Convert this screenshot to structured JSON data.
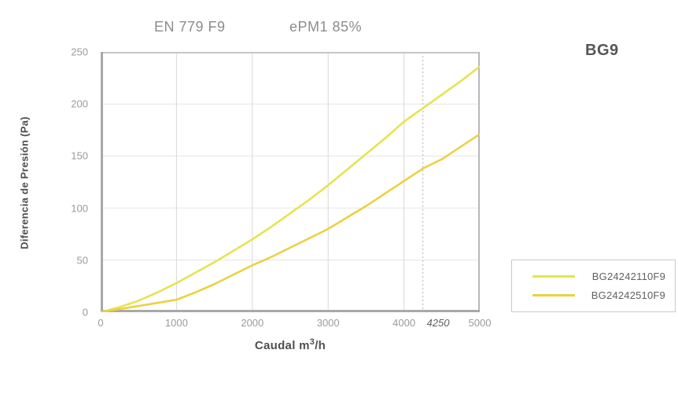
{
  "header": {
    "en779_label": "EN 779 F9",
    "epm1_label": "ePM1 85%",
    "model_label": "BG9"
  },
  "chart_data": {
    "type": "line",
    "title": "",
    "xlabel_prefix": "Caudal m",
    "xlabel_sup": "3",
    "xlabel_suffix": "/h",
    "ylabel": "Diferencia de Presión  (Pa)",
    "xlim": [
      0,
      5000
    ],
    "ylim": [
      0,
      250
    ],
    "x_ticks": [
      0,
      1000,
      2000,
      3000,
      4000,
      5000
    ],
    "y_ticks": [
      0,
      50,
      100,
      150,
      200,
      250
    ],
    "x_annotation_label": "4250",
    "reference_line_x": 4250,
    "grid": true,
    "legend_position": "outside-right",
    "x_samples": [
      0,
      250,
      500,
      750,
      1000,
      1250,
      1500,
      1750,
      2000,
      2250,
      2500,
      2750,
      3000,
      3250,
      3500,
      3750,
      4000,
      4250,
      4500,
      4750,
      5000
    ],
    "series": [
      {
        "name": "BG24242110F9",
        "color": "#e6e34c",
        "values": [
          0,
          5,
          11,
          19,
          28,
          38,
          48,
          59,
          70,
          82,
          95,
          108,
          122,
          137,
          152,
          167,
          183,
          196,
          209,
          222,
          236
        ]
      },
      {
        "name": "BG24242510F9",
        "color": "#ecd03e",
        "values": [
          0,
          3,
          6,
          9,
          12,
          19,
          27,
          36,
          45,
          53,
          62,
          71,
          80,
          91,
          102,
          114,
          126,
          138,
          147,
          159,
          171
        ]
      }
    ],
    "colors": {
      "grid_horizontal": "#e4e4e4",
      "grid_vertical": "#d8d8d8",
      "reference_line": "#b2b2b2",
      "axis_spine": "#a8a8a8"
    }
  }
}
